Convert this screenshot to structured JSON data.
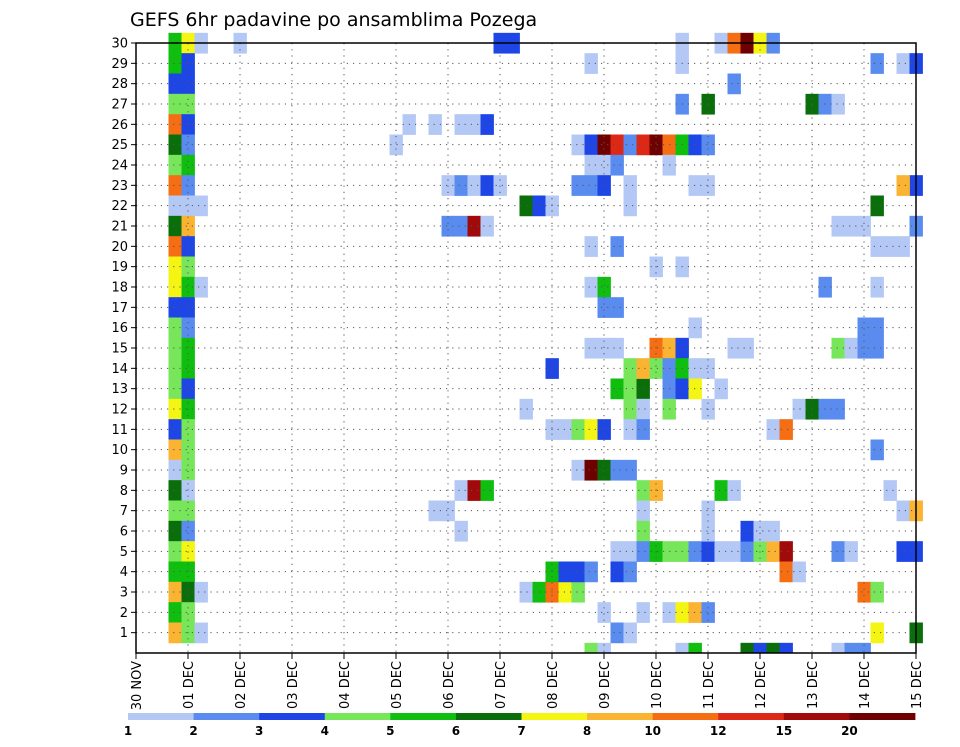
{
  "chart_data": {
    "type": "heatmap",
    "title": "GEFS 6hr padavine po ansamblima Pozega",
    "x_tick_labels": [
      "30 NOV",
      "01 DEC",
      "02 DEC",
      "03 DEC",
      "04 DEC",
      "05 DEC",
      "06 DEC",
      "07 DEC",
      "08 DEC",
      "09 DEC",
      "10 DEC",
      "11 DEC",
      "12 DEC",
      "13 DEC",
      "14 DEC",
      "15 DEC"
    ],
    "y_tick_labels": [
      "1",
      "2",
      "3",
      "4",
      "5",
      "6",
      "7",
      "8",
      "9",
      "10",
      "11",
      "12",
      "13",
      "14",
      "15",
      "16",
      "17",
      "18",
      "19",
      "20",
      "21",
      "22",
      "23",
      "24",
      "25",
      "26",
      "27",
      "28",
      "29",
      "30"
    ],
    "x_unit": "days since 30 NOV 00Z",
    "x_range": [
      0,
      15
    ],
    "y_range": [
      0,
      30
    ],
    "grid": true,
    "colorbar": {
      "labels": [
        "1",
        "2",
        "3",
        "4",
        "5",
        "6",
        "7",
        "8",
        "10",
        "12",
        "15",
        "20"
      ],
      "colors": [
        "#b4c8f5",
        "#5a8cf0",
        "#1e46e6",
        "#78e65a",
        "#10be10",
        "#0a6e0a",
        "#f5f514",
        "#fab432",
        "#f56e14",
        "#dc2814",
        "#a00a0a",
        "#6e0000"
      ]
    },
    "cells": [
      [
        0.75,
        30,
        4
      ],
      [
        0.75,
        29,
        4
      ],
      [
        0.75,
        28,
        2
      ],
      [
        0.75,
        27,
        3
      ],
      [
        0.75,
        26,
        8
      ],
      [
        0.75,
        25,
        5
      ],
      [
        0.75,
        24,
        3
      ],
      [
        0.75,
        23,
        8
      ],
      [
        0.75,
        22,
        0
      ],
      [
        0.75,
        21,
        5
      ],
      [
        0.75,
        20,
        8
      ],
      [
        0.75,
        19,
        6
      ],
      [
        0.75,
        18,
        6
      ],
      [
        0.75,
        17,
        2
      ],
      [
        0.75,
        16,
        3
      ],
      [
        0.75,
        15,
        3
      ],
      [
        0.75,
        14,
        3
      ],
      [
        0.75,
        13,
        3
      ],
      [
        0.75,
        12,
        6
      ],
      [
        0.75,
        11,
        2
      ],
      [
        0.75,
        10,
        7
      ],
      [
        0.75,
        9,
        0
      ],
      [
        0.75,
        8,
        5
      ],
      [
        0.75,
        7,
        3
      ],
      [
        0.75,
        6,
        5
      ],
      [
        0.75,
        5,
        3
      ],
      [
        0.75,
        4,
        4
      ],
      [
        0.75,
        3,
        7
      ],
      [
        0.75,
        2,
        4
      ],
      [
        0.75,
        1,
        7
      ],
      [
        1.0,
        30,
        6
      ],
      [
        1.0,
        29,
        2
      ],
      [
        1.0,
        28,
        2
      ],
      [
        1.0,
        27,
        3
      ],
      [
        1.0,
        26,
        2
      ],
      [
        1.0,
        25,
        1
      ],
      [
        1.0,
        24,
        4
      ],
      [
        1.0,
        23,
        1
      ],
      [
        1.0,
        22,
        0
      ],
      [
        1.0,
        21,
        7
      ],
      [
        1.0,
        20,
        2
      ],
      [
        1.0,
        19,
        3
      ],
      [
        1.0,
        18,
        4
      ],
      [
        1.0,
        17,
        2
      ],
      [
        1.0,
        16,
        1
      ],
      [
        1.0,
        15,
        4
      ],
      [
        1.0,
        14,
        4
      ],
      [
        1.0,
        13,
        2
      ],
      [
        1.0,
        12,
        4
      ],
      [
        1.0,
        11,
        3
      ],
      [
        1.0,
        10,
        3
      ],
      [
        1.0,
        9,
        3
      ],
      [
        1.0,
        8,
        0
      ],
      [
        1.0,
        7,
        3
      ],
      [
        1.0,
        6,
        1
      ],
      [
        1.0,
        5,
        6
      ],
      [
        1.0,
        4,
        4
      ],
      [
        1.0,
        3,
        5
      ],
      [
        1.0,
        2,
        3
      ],
      [
        1.0,
        1,
        3
      ],
      [
        1.25,
        30,
        0
      ],
      [
        1.25,
        22,
        0
      ],
      [
        1.25,
        18,
        0
      ],
      [
        1.25,
        3,
        0
      ],
      [
        1.25,
        1,
        0
      ],
      [
        2.0,
        30,
        0
      ],
      [
        7.0,
        30,
        2
      ],
      [
        7.25,
        30,
        2
      ],
      [
        5.0,
        25,
        0
      ],
      [
        5.25,
        26,
        0
      ],
      [
        5.75,
        26,
        0
      ],
      [
        6.25,
        26,
        0
      ],
      [
        6.5,
        26,
        0
      ],
      [
        6.75,
        26,
        2
      ],
      [
        6.0,
        23,
        0
      ],
      [
        6.25,
        23,
        1
      ],
      [
        6.5,
        23,
        0
      ],
      [
        6.75,
        23,
        2
      ],
      [
        7.0,
        23,
        0
      ],
      [
        6.0,
        21,
        1
      ],
      [
        6.25,
        21,
        1
      ],
      [
        6.5,
        21,
        10
      ],
      [
        6.75,
        21,
        0
      ],
      [
        7.5,
        22,
        5
      ],
      [
        7.75,
        22,
        2
      ],
      [
        8.0,
        22,
        0
      ],
      [
        6.25,
        8,
        0
      ],
      [
        6.5,
        8,
        10
      ],
      [
        6.75,
        8,
        4
      ],
      [
        5.75,
        7,
        0
      ],
      [
        6.0,
        7,
        0
      ],
      [
        6.25,
        6,
        0
      ],
      [
        7.5,
        12,
        0
      ],
      [
        7.5,
        3,
        0
      ],
      [
        7.75,
        3,
        4
      ],
      [
        8.0,
        3,
        8
      ],
      [
        8.25,
        3,
        6
      ],
      [
        8.5,
        3,
        3
      ],
      [
        8.0,
        4,
        4
      ],
      [
        8.25,
        4,
        2
      ],
      [
        8.5,
        4,
        2
      ],
      [
        8.75,
        4,
        1
      ],
      [
        8.0,
        14,
        2
      ],
      [
        8.0,
        11,
        0
      ],
      [
        8.25,
        11,
        0
      ],
      [
        8.5,
        11,
        3
      ],
      [
        8.75,
        11,
        6
      ],
      [
        9.0,
        11,
        2
      ],
      [
        8.5,
        25,
        0
      ],
      [
        8.75,
        25,
        2
      ],
      [
        9.0,
        25,
        11
      ],
      [
        9.25,
        25,
        9
      ],
      [
        9.5,
        25,
        1
      ],
      [
        9.75,
        25,
        9
      ],
      [
        10.0,
        25,
        11
      ],
      [
        10.25,
        25,
        8
      ],
      [
        10.5,
        25,
        4
      ],
      [
        10.75,
        25,
        2
      ],
      [
        11.0,
        25,
        1
      ],
      [
        8.75,
        24,
        0
      ],
      [
        9.0,
        24,
        0
      ],
      [
        9.25,
        24,
        1
      ],
      [
        10.25,
        24,
        0
      ],
      [
        8.5,
        23,
        1
      ],
      [
        8.75,
        23,
        1
      ],
      [
        9.0,
        23,
        2
      ],
      [
        9.5,
        23,
        0
      ],
      [
        10.75,
        23,
        0
      ],
      [
        11.0,
        23,
        0
      ],
      [
        9.5,
        22,
        0
      ],
      [
        8.75,
        29,
        0
      ],
      [
        8.75,
        20,
        0
      ],
      [
        9.25,
        20,
        1
      ],
      [
        8.75,
        18,
        0
      ],
      [
        9.0,
        18,
        4
      ],
      [
        9.0,
        17,
        1
      ],
      [
        9.25,
        17,
        1
      ],
      [
        8.75,
        15,
        0
      ],
      [
        9.0,
        15,
        0
      ],
      [
        9.25,
        15,
        0
      ],
      [
        8.5,
        9,
        0
      ],
      [
        8.75,
        9,
        11
      ],
      [
        9.0,
        9,
        5
      ],
      [
        9.25,
        9,
        1
      ],
      [
        9.5,
        9,
        1
      ],
      [
        9.25,
        13,
        4
      ],
      [
        9.5,
        13,
        3
      ],
      [
        9.75,
        13,
        5
      ],
      [
        9.5,
        14,
        3
      ],
      [
        9.75,
        14,
        7
      ],
      [
        9.5,
        12,
        3
      ],
      [
        9.75,
        12,
        0
      ],
      [
        9.5,
        11,
        0
      ],
      [
        9.75,
        11,
        1
      ],
      [
        9.75,
        8,
        3
      ],
      [
        10.0,
        8,
        7
      ],
      [
        9.75,
        7,
        0
      ],
      [
        9.75,
        6,
        3
      ],
      [
        9.25,
        5,
        0
      ],
      [
        9.5,
        5,
        0
      ],
      [
        9.75,
        5,
        1
      ],
      [
        10.0,
        5,
        4
      ],
      [
        10.25,
        5,
        3
      ],
      [
        10.5,
        5,
        3
      ],
      [
        10.75,
        5,
        1
      ],
      [
        11.0,
        5,
        2
      ],
      [
        11.25,
        5,
        0
      ],
      [
        11.5,
        5,
        0
      ],
      [
        11.75,
        5,
        1
      ],
      [
        12.0,
        5,
        3
      ],
      [
        12.25,
        5,
        7
      ],
      [
        12.5,
        5,
        10
      ],
      [
        9.25,
        4,
        2
      ],
      [
        9.5,
        4,
        1
      ],
      [
        9.0,
        2,
        0
      ],
      [
        9.75,
        2,
        0
      ],
      [
        10.25,
        2,
        0
      ],
      [
        10.5,
        2,
        6
      ],
      [
        10.75,
        2,
        7
      ],
      [
        11.0,
        2,
        1
      ],
      [
        9.25,
        1,
        1
      ],
      [
        9.5,
        1,
        0
      ],
      [
        8.75,
        0.5,
        3
      ],
      [
        9.0,
        0.5,
        0
      ],
      [
        10.5,
        0.5,
        0
      ],
      [
        10.75,
        0.5,
        4
      ],
      [
        11.75,
        0.5,
        5
      ],
      [
        12.0,
        0.5,
        2
      ],
      [
        12.25,
        0.5,
        5
      ],
      [
        12.5,
        0.5,
        2
      ],
      [
        13.5,
        0.5,
        0
      ],
      [
        13.75,
        0.5,
        1
      ],
      [
        14.0,
        0.5,
        1
      ],
      [
        10.0,
        15,
        8
      ],
      [
        10.25,
        15,
        7
      ],
      [
        10.5,
        15,
        2
      ],
      [
        10.75,
        16,
        0
      ],
      [
        10.0,
        14,
        3
      ],
      [
        10.25,
        14,
        1
      ],
      [
        10.5,
        14,
        4
      ],
      [
        10.75,
        14,
        0
      ],
      [
        11.0,
        14,
        0
      ],
      [
        10.25,
        13,
        1
      ],
      [
        10.5,
        13,
        2
      ],
      [
        10.75,
        13,
        6
      ],
      [
        11.25,
        13,
        0
      ],
      [
        10.25,
        12,
        3
      ],
      [
        11.0,
        12,
        0
      ],
      [
        10.0,
        19,
        0
      ],
      [
        10.5,
        19,
        0
      ],
      [
        10.5,
        27,
        1
      ],
      [
        11.0,
        27,
        5
      ],
      [
        10.5,
        29,
        0
      ],
      [
        10.5,
        30,
        0
      ],
      [
        11.5,
        28,
        1
      ],
      [
        11.25,
        30,
        0
      ],
      [
        11.5,
        30,
        8
      ],
      [
        11.75,
        30,
        11
      ],
      [
        12.0,
        30,
        6
      ],
      [
        12.25,
        30,
        1
      ],
      [
        11.25,
        8,
        4
      ],
      [
        11.5,
        8,
        0
      ],
      [
        11.0,
        7,
        0
      ],
      [
        11.0,
        6,
        0
      ],
      [
        11.75,
        6,
        2
      ],
      [
        12.0,
        6,
        0
      ],
      [
        12.25,
        6,
        0
      ],
      [
        11.5,
        15,
        0
      ],
      [
        11.75,
        15,
        0
      ],
      [
        12.25,
        11,
        0
      ],
      [
        12.5,
        11,
        8
      ],
      [
        12.5,
        4,
        8
      ],
      [
        12.75,
        4,
        0
      ],
      [
        13.0,
        27,
        5
      ],
      [
        13.25,
        27,
        1
      ],
      [
        13.5,
        27,
        0
      ],
      [
        12.75,
        12,
        0
      ],
      [
        13.0,
        12,
        5
      ],
      [
        13.25,
        12,
        1
      ],
      [
        13.5,
        12,
        1
      ],
      [
        13.25,
        18,
        1
      ],
      [
        13.5,
        21,
        0
      ],
      [
        13.75,
        21,
        0
      ],
      [
        14.0,
        21,
        0
      ],
      [
        13.5,
        15,
        3
      ],
      [
        13.75,
        15,
        0
      ],
      [
        14.0,
        15,
        1
      ],
      [
        14.25,
        15,
        1
      ],
      [
        14.0,
        16,
        1
      ],
      [
        14.25,
        16,
        1
      ],
      [
        14.25,
        22,
        5
      ],
      [
        14.25,
        18,
        0
      ],
      [
        14.25,
        20,
        0
      ],
      [
        14.5,
        20,
        0
      ],
      [
        14.75,
        20,
        0
      ],
      [
        14.25,
        10,
        1
      ],
      [
        14.25,
        1,
        6
      ],
      [
        14.0,
        3,
        8
      ],
      [
        14.25,
        3,
        3
      ],
      [
        13.5,
        5,
        1
      ],
      [
        13.75,
        5,
        0
      ],
      [
        14.75,
        5,
        2
      ],
      [
        15.0,
        5,
        2
      ],
      [
        14.5,
        8,
        0
      ],
      [
        14.75,
        7,
        0
      ],
      [
        15.0,
        7,
        7
      ],
      [
        15.0,
        1,
        5
      ],
      [
        14.25,
        29,
        1
      ],
      [
        14.75,
        29,
        0
      ],
      [
        15.0,
        29,
        2
      ],
      [
        15.0,
        21,
        1
      ],
      [
        15.0,
        23,
        2
      ],
      [
        14.75,
        23,
        7
      ]
    ]
  }
}
